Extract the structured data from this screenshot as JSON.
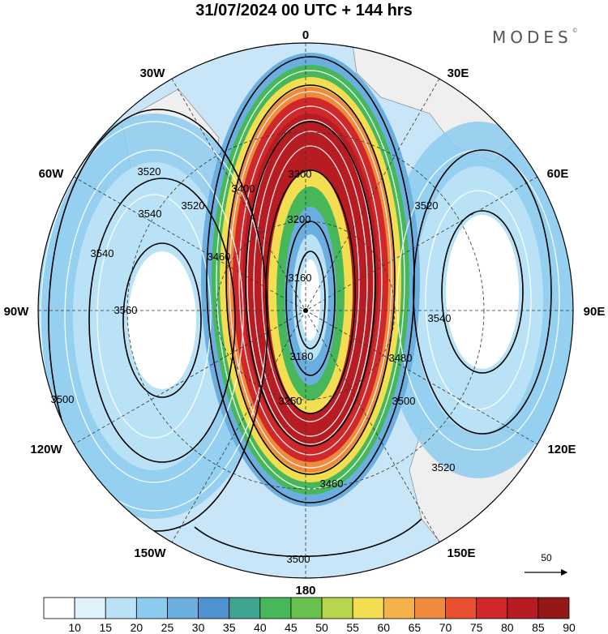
{
  "title": "31/07/2024  00 UTC  + 144 hrs",
  "brand": "MODES",
  "brand_mark": "©",
  "longitude_labels": [
    "0",
    "30E",
    "60E",
    "90E",
    "120E",
    "150E",
    "180",
    "150W",
    "120W",
    "90W",
    "60W",
    "30W"
  ],
  "contour_labels": [
    "3500",
    "3520",
    "3540",
    "3560",
    "3200",
    "3300",
    "3400",
    "3180",
    "3160",
    "3250",
    "3500",
    "3480",
    "3460",
    "3540",
    "3520",
    "3460",
    "3520",
    "3540",
    "3500",
    "3520"
  ],
  "vector_reference": "50",
  "colorbar": {
    "labels": [
      "10",
      "15",
      "20",
      "25",
      "30",
      "35",
      "40",
      "45",
      "50",
      "55",
      "60",
      "65",
      "70",
      "75",
      "80",
      "85",
      "90"
    ],
    "colors": [
      "#ffffff",
      "#dff1fb",
      "#b9e2f7",
      "#8ccbee",
      "#6aafe0",
      "#4e92cf",
      "#3fa392",
      "#47b75a",
      "#69c24e",
      "#b7d64c",
      "#f3de52",
      "#f5b24a",
      "#f08a3c",
      "#e8502f",
      "#d0282a",
      "#b71c23",
      "#941818"
    ]
  },
  "map_colors": {
    "ocean_light": "#c8e6f8",
    "ocean_mid": "#8ccbee",
    "ocean_dark": "#5aa5dc",
    "land": "#efefef",
    "jet_core": "#b71c23"
  }
}
